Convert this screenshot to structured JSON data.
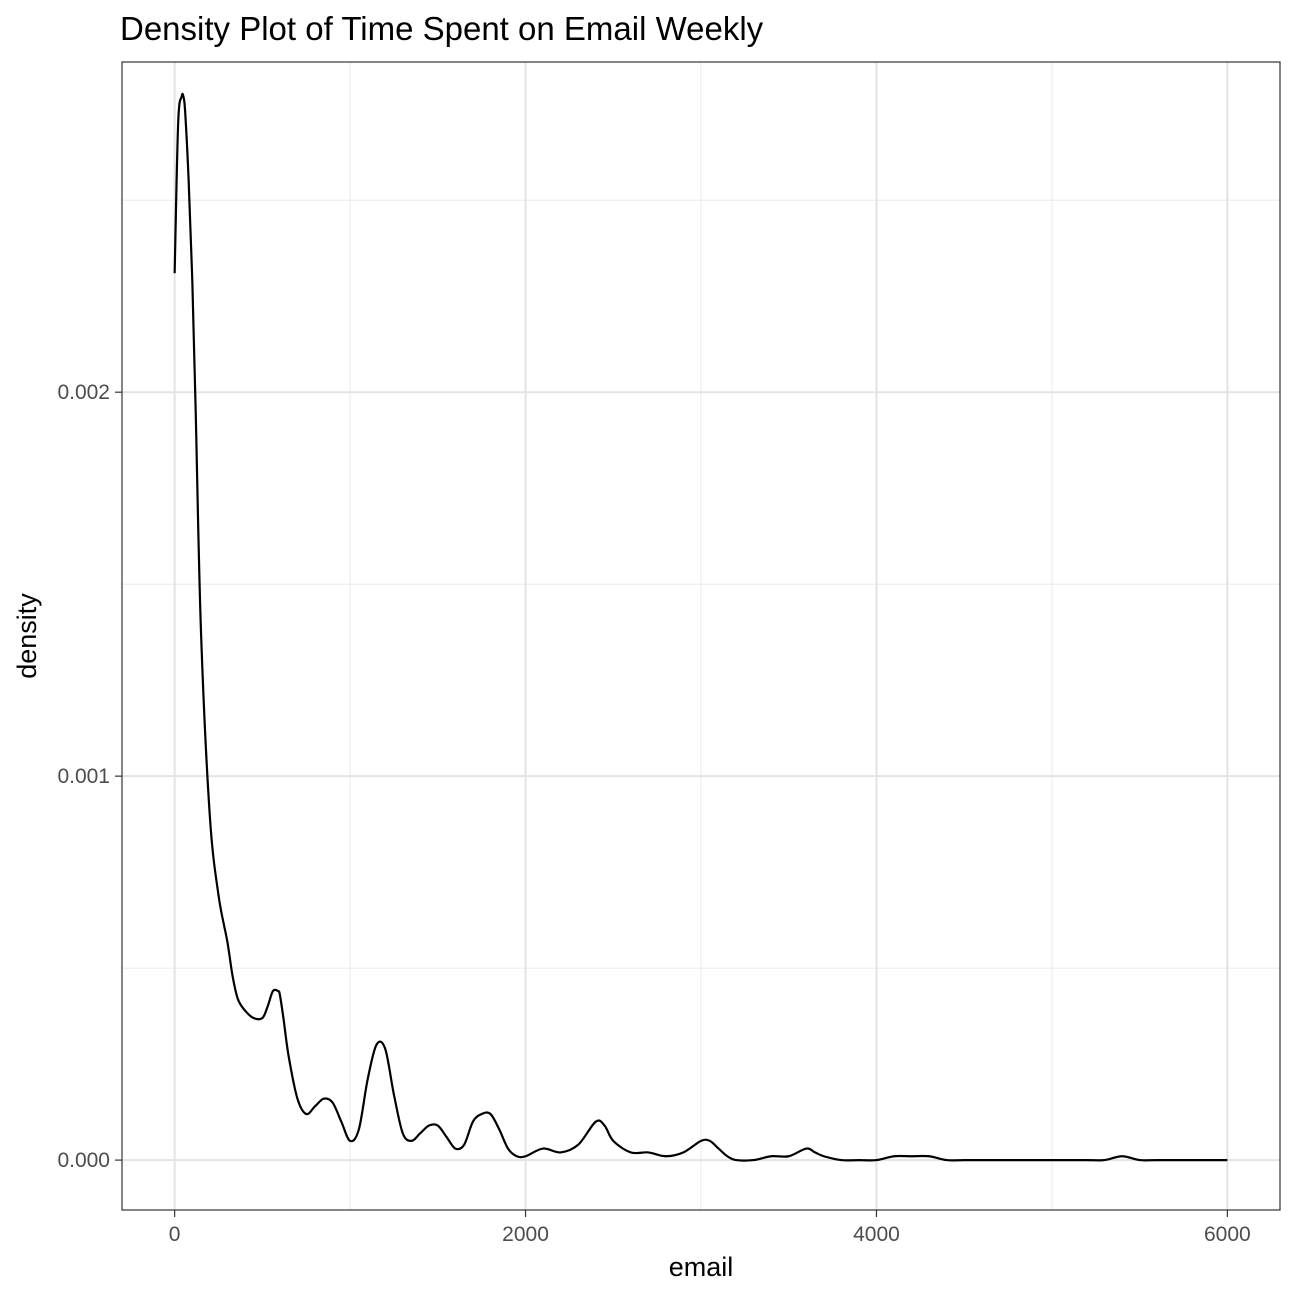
{
  "chart_data": {
    "type": "line",
    "title": "Density Plot of Time Spent on Email Weekly",
    "xlabel": "email",
    "ylabel": "density",
    "xlim": [
      -300,
      6300
    ],
    "ylim": [
      -0.00013,
      0.00286
    ],
    "x_ticks": [
      {
        "value": 0,
        "label": "0"
      },
      {
        "value": 2000,
        "label": "2000"
      },
      {
        "value": 4000,
        "label": "4000"
      },
      {
        "value": 6000,
        "label": "6000"
      }
    ],
    "y_ticks": [
      {
        "value": 0,
        "label": "0.000"
      },
      {
        "value": 0.001,
        "label": "0.001"
      },
      {
        "value": 0.002,
        "label": "0.002"
      }
    ],
    "x_minor": [
      1000,
      3000,
      5000
    ],
    "y_minor": [
      0.0005,
      0.0015,
      0.0025
    ],
    "grid": true,
    "line_color": "#000000",
    "series": [
      {
        "x": [
          0,
          20,
          40,
          50,
          60,
          80,
          100,
          120,
          150,
          200,
          250,
          300,
          330,
          360,
          400,
          450,
          500,
          530,
          560,
          590,
          600,
          620,
          650,
          700,
          750,
          800,
          850,
          900,
          950,
          1000,
          1050,
          1100,
          1150,
          1200,
          1250,
          1300,
          1350,
          1400,
          1450,
          1500,
          1550,
          1600,
          1650,
          1700,
          1750,
          1800,
          1850,
          1900,
          1950,
          2000,
          2100,
          2200,
          2300,
          2400,
          2450,
          2500,
          2600,
          2700,
          2800,
          2900,
          3000,
          3050,
          3100,
          3150,
          3200,
          3300,
          3400,
          3500,
          3600,
          3650,
          3700,
          3800,
          3900,
          4000,
          4100,
          4200,
          4300,
          4400,
          4500,
          4600,
          4700,
          4800,
          5000,
          5200,
          5300,
          5400,
          5500,
          5600,
          5800,
          6000
        ],
        "y": [
          0.00231,
          0.0027,
          0.00277,
          0.00277,
          0.00273,
          0.00255,
          0.0023,
          0.00195,
          0.00138,
          0.0009,
          0.00069,
          0.00057,
          0.00048,
          0.00042,
          0.00039,
          0.00037,
          0.00037,
          0.0004,
          0.00044,
          0.00044,
          0.00043,
          0.00037,
          0.00027,
          0.00016,
          0.00012,
          0.00014,
          0.00016,
          0.00015,
          0.0001,
          5e-05,
          8e-05,
          0.00021,
          0.0003,
          0.00029,
          0.00017,
          7e-05,
          5e-05,
          7e-05,
          9e-05,
          9e-05,
          6e-05,
          3e-05,
          4e-05,
          0.0001,
          0.00012,
          0.00012,
          8e-05,
          3e-05,
          1e-05,
          1e-05,
          3e-05,
          2e-05,
          4e-05,
          0.0001,
          9e-05,
          5e-05,
          2e-05,
          2e-05,
          1e-05,
          2e-05,
          5e-05,
          5e-05,
          3e-05,
          1e-05,
          0.0,
          0.0,
          1e-05,
          1e-05,
          3e-05,
          2e-05,
          1e-05,
          0.0,
          0.0,
          0.0,
          1e-05,
          1e-05,
          1e-05,
          0.0,
          0.0,
          0.0,
          0.0,
          0.0,
          0.0,
          0.0,
          0.0,
          1e-05,
          0.0,
          0.0,
          0.0,
          0.0
        ]
      }
    ]
  }
}
